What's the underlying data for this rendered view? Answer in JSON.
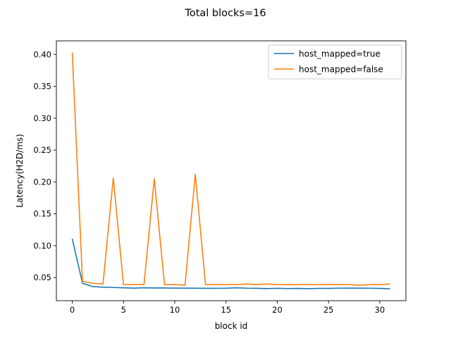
{
  "chart_data": {
    "type": "line",
    "title": "Total blocks=16",
    "xlabel": "block id",
    "ylabel": "Latency(H2D/ms)",
    "xlim": [
      -1.55,
      32.55
    ],
    "ylim": [
      0.0138,
      0.4213
    ],
    "xticks": [
      0,
      5,
      10,
      15,
      20,
      25,
      30
    ],
    "yticks": [
      0.05,
      0.1,
      0.15,
      0.2,
      0.25,
      0.3,
      0.35,
      0.4
    ],
    "ytick_labels": [
      "0.05",
      "0.10",
      "0.15",
      "0.20",
      "0.25",
      "0.30",
      "0.35",
      "0.40"
    ],
    "legend_position": "top-right",
    "x": [
      0,
      1,
      2,
      3,
      4,
      5,
      6,
      7,
      8,
      9,
      10,
      11,
      12,
      13,
      14,
      15,
      16,
      17,
      18,
      19,
      20,
      21,
      22,
      23,
      24,
      25,
      26,
      27,
      28,
      29,
      30,
      31
    ],
    "series": [
      {
        "name": "host_mapped=true",
        "color": "#1f77b4",
        "values": [
          0.111,
          0.041,
          0.036,
          0.035,
          0.0345,
          0.034,
          0.0335,
          0.034,
          0.0338,
          0.0337,
          0.0335,
          0.0335,
          0.0333,
          0.0332,
          0.0332,
          0.0333,
          0.034,
          0.0334,
          0.0332,
          0.0328,
          0.0332,
          0.0328,
          0.0331,
          0.0327,
          0.0331,
          0.0331,
          0.0334,
          0.0335,
          0.0335,
          0.0333,
          0.0331,
          0.0325
        ]
      },
      {
        "name": "host_mapped=false",
        "color": "#ff7f0e",
        "values": [
          0.403,
          0.044,
          0.041,
          0.04,
          0.206,
          0.039,
          0.039,
          0.039,
          0.205,
          0.039,
          0.039,
          0.038,
          0.212,
          0.039,
          0.039,
          0.039,
          0.039,
          0.04,
          0.039,
          0.04,
          0.039,
          0.039,
          0.039,
          0.039,
          0.039,
          0.039,
          0.039,
          0.039,
          0.038,
          0.039,
          0.039,
          0.04
        ]
      }
    ]
  }
}
